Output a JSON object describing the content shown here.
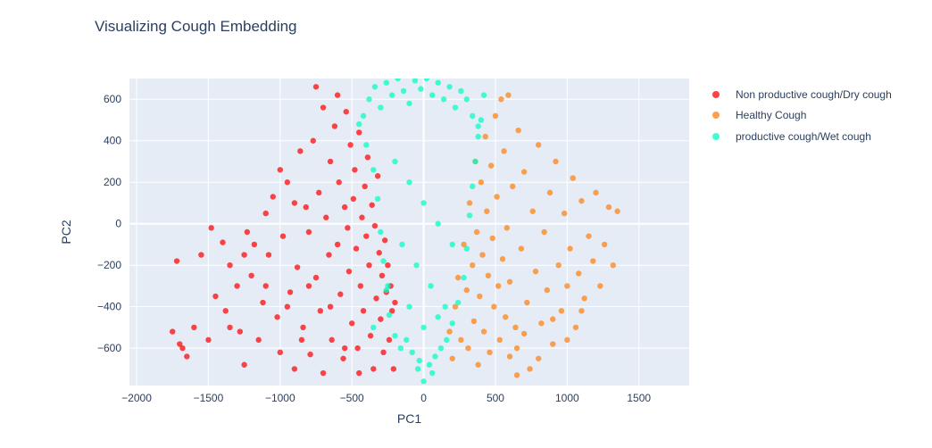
{
  "chart_data": {
    "type": "scatter",
    "title": "Visualizing Cough Embedding",
    "xlabel": "PC1",
    "ylabel": "PC2",
    "xlim": [
      -2050,
      1850
    ],
    "ylim": [
      -780,
      700
    ],
    "xticks": [
      -2000,
      -1500,
      -1000,
      -500,
      0,
      500,
      1000,
      1500
    ],
    "xtick_labels": [
      "−2000",
      "−1500",
      "−1000",
      "−500",
      "0",
      "500",
      "1000",
      "1500"
    ],
    "yticks": [
      -600,
      -400,
      -200,
      0,
      200,
      400,
      600
    ],
    "ytick_labels": [
      "−600",
      "−400",
      "−200",
      "0",
      "200",
      "400",
      "600"
    ],
    "grid": true,
    "legend_position": "right",
    "plot_background": "#e5ecf6",
    "series": [
      {
        "name": "Non productive cough/Dry cough",
        "color": "#ff0000",
        "points": [
          [
            -1750,
            -520
          ],
          [
            -1720,
            -180
          ],
          [
            -1700,
            -580
          ],
          [
            -1680,
            -600
          ],
          [
            -1650,
            -640
          ],
          [
            -1600,
            -500
          ],
          [
            -1550,
            -150
          ],
          [
            -1500,
            -560
          ],
          [
            -1480,
            -20
          ],
          [
            -1450,
            -350
          ],
          [
            -1400,
            -90
          ],
          [
            -1380,
            -420
          ],
          [
            -1350,
            -200
          ],
          [
            -1300,
            -300
          ],
          [
            -1280,
            -520
          ],
          [
            -1250,
            -680
          ],
          [
            -1230,
            -40
          ],
          [
            -1200,
            -250
          ],
          [
            -1180,
            -100
          ],
          [
            -1150,
            -560
          ],
          [
            -1120,
            -380
          ],
          [
            -1100,
            50
          ],
          [
            -1080,
            -150
          ],
          [
            -1050,
            130
          ],
          [
            -1020,
            -450
          ],
          [
            -1000,
            -620
          ],
          [
            -980,
            -60
          ],
          [
            -950,
            200
          ],
          [
            -930,
            -330
          ],
          [
            -900,
            -700
          ],
          [
            -880,
            -210
          ],
          [
            -860,
            350
          ],
          [
            -840,
            -500
          ],
          [
            -820,
            80
          ],
          [
            -800,
            -40
          ],
          [
            -790,
            -630
          ],
          [
            -770,
            400
          ],
          [
            -750,
            -260
          ],
          [
            -730,
            150
          ],
          [
            -720,
            -420
          ],
          [
            -700,
            -720
          ],
          [
            -680,
            30
          ],
          [
            -660,
            -150
          ],
          [
            -650,
            300
          ],
          [
            -640,
            -560
          ],
          [
            -620,
            470
          ],
          [
            -600,
            -100
          ],
          [
            -590,
            200
          ],
          [
            -580,
            -340
          ],
          [
            -560,
            -650
          ],
          [
            -550,
            80
          ],
          [
            -540,
            540
          ],
          [
            -530,
            -20
          ],
          [
            -520,
            -230
          ],
          [
            -510,
            380
          ],
          [
            -500,
            -480
          ],
          [
            -490,
            120
          ],
          [
            -480,
            260
          ],
          [
            -470,
            -120
          ],
          [
            -460,
            -600
          ],
          [
            -450,
            440
          ],
          [
            -440,
            -300
          ],
          [
            -430,
            30
          ],
          [
            -420,
            -420
          ],
          [
            -410,
            180
          ],
          [
            -400,
            -60
          ],
          [
            -390,
            320
          ],
          [
            -380,
            -200
          ],
          [
            -370,
            -540
          ],
          [
            -360,
            90
          ],
          [
            -350,
            -700
          ],
          [
            -340,
            -10
          ],
          [
            -330,
            -360
          ],
          [
            -320,
            230
          ],
          [
            -310,
            -140
          ],
          [
            -300,
            -460
          ],
          [
            -290,
            -250
          ],
          [
            -280,
            -620
          ],
          [
            -270,
            -80
          ],
          [
            -260,
            -330
          ],
          [
            -250,
            -200
          ],
          [
            -240,
            -560
          ],
          [
            -230,
            -300
          ],
          [
            -220,
            -420
          ],
          [
            -210,
            -700
          ],
          [
            -200,
            -380
          ],
          [
            -800,
            -300
          ],
          [
            -900,
            100
          ],
          [
            -1000,
            260
          ],
          [
            -700,
            560
          ],
          [
            -600,
            620
          ],
          [
            -750,
            660
          ],
          [
            -1100,
            -300
          ],
          [
            -950,
            -400
          ],
          [
            -650,
            -400
          ],
          [
            -550,
            -600
          ],
          [
            -450,
            -720
          ],
          [
            -1250,
            -150
          ],
          [
            -1350,
            -500
          ],
          [
            -850,
            -560
          ]
        ]
      },
      {
        "name": "Healthy Cough",
        "color": "#ff7f0e",
        "points": [
          [
            180,
            -520
          ],
          [
            200,
            -650
          ],
          [
            220,
            -400
          ],
          [
            240,
            -260
          ],
          [
            260,
            -560
          ],
          [
            280,
            -100
          ],
          [
            300,
            -320
          ],
          [
            310,
            -600
          ],
          [
            320,
            100
          ],
          [
            340,
            -200
          ],
          [
            350,
            -470
          ],
          [
            360,
            300
          ],
          [
            370,
            -40
          ],
          [
            380,
            -680
          ],
          [
            390,
            -350
          ],
          [
            400,
            200
          ],
          [
            410,
            -150
          ],
          [
            420,
            -520
          ],
          [
            430,
            420
          ],
          [
            440,
            60
          ],
          [
            450,
            -250
          ],
          [
            460,
            -620
          ],
          [
            470,
            280
          ],
          [
            480,
            -70
          ],
          [
            490,
            -400
          ],
          [
            500,
            520
          ],
          [
            510,
            130
          ],
          [
            520,
            -300
          ],
          [
            530,
            -560
          ],
          [
            540,
            600
          ],
          [
            550,
            -170
          ],
          [
            560,
            350
          ],
          [
            570,
            -450
          ],
          [
            580,
            -20
          ],
          [
            590,
            620
          ],
          [
            600,
            -280
          ],
          [
            620,
            180
          ],
          [
            640,
            -500
          ],
          [
            650,
            -600
          ],
          [
            660,
            450
          ],
          [
            680,
            -120
          ],
          [
            700,
            250
          ],
          [
            720,
            -380
          ],
          [
            740,
            -700
          ],
          [
            760,
            60
          ],
          [
            780,
            -230
          ],
          [
            800,
            380
          ],
          [
            820,
            -480
          ],
          [
            840,
            -40
          ],
          [
            860,
            -320
          ],
          [
            880,
            150
          ],
          [
            900,
            -580
          ],
          [
            920,
            300
          ],
          [
            940,
            -200
          ],
          [
            960,
            -420
          ],
          [
            980,
            50
          ],
          [
            1000,
            -300
          ],
          [
            1020,
            -120
          ],
          [
            1040,
            220
          ],
          [
            1060,
            -500
          ],
          [
            1080,
            -240
          ],
          [
            1100,
            110
          ],
          [
            1120,
            -360
          ],
          [
            1150,
            -60
          ],
          [
            1180,
            -180
          ],
          [
            1200,
            150
          ],
          [
            1230,
            -300
          ],
          [
            1260,
            -100
          ],
          [
            1290,
            80
          ],
          [
            1320,
            -200
          ],
          [
            1350,
            60
          ],
          [
            650,
            -730
          ],
          [
            1000,
            -560
          ],
          [
            800,
            -650
          ],
          [
            700,
            -530
          ],
          [
            600,
            -640
          ],
          [
            900,
            -460
          ],
          [
            1100,
            -420
          ]
        ]
      },
      {
        "name": "productive cough/Wet cough",
        "color": "#00fec0",
        "points": [
          [
            -420,
            520
          ],
          [
            -380,
            600
          ],
          [
            -340,
            660
          ],
          [
            -300,
            560
          ],
          [
            -260,
            680
          ],
          [
            -220,
            620
          ],
          [
            -180,
            700
          ],
          [
            -140,
            640
          ],
          [
            -100,
            580
          ],
          [
            -60,
            690
          ],
          [
            -20,
            650
          ],
          [
            20,
            700
          ],
          [
            60,
            620
          ],
          [
            100,
            680
          ],
          [
            140,
            600
          ],
          [
            180,
            660
          ],
          [
            220,
            560
          ],
          [
            260,
            640
          ],
          [
            300,
            600
          ],
          [
            340,
            520
          ],
          [
            380,
            470
          ],
          [
            -400,
            380
          ],
          [
            -350,
            260
          ],
          [
            -320,
            120
          ],
          [
            -300,
            -40
          ],
          [
            -280,
            -180
          ],
          [
            -260,
            -320
          ],
          [
            -240,
            -440
          ],
          [
            -200,
            -540
          ],
          [
            -160,
            -600
          ],
          [
            -120,
            -560
          ],
          [
            -80,
            -620
          ],
          [
            -40,
            -700
          ],
          [
            0,
            -760
          ],
          [
            40,
            -680
          ],
          [
            80,
            -640
          ],
          [
            120,
            -600
          ],
          [
            160,
            -560
          ],
          [
            200,
            -480
          ],
          [
            240,
            -380
          ],
          [
            280,
            -260
          ],
          [
            300,
            -120
          ],
          [
            320,
            40
          ],
          [
            340,
            180
          ],
          [
            360,
            300
          ],
          [
            380,
            420
          ],
          [
            400,
            500
          ],
          [
            -200,
            300
          ],
          [
            -100,
            200
          ],
          [
            0,
            100
          ],
          [
            100,
            0
          ],
          [
            200,
            -100
          ],
          [
            -150,
            -100
          ],
          [
            -50,
            -200
          ],
          [
            50,
            -300
          ],
          [
            150,
            -400
          ],
          [
            -250,
            -300
          ],
          [
            -100,
            -400
          ],
          [
            0,
            -500
          ],
          [
            100,
            -450
          ],
          [
            -350,
            -500
          ],
          [
            420,
            620
          ],
          [
            -450,
            480
          ],
          [
            -30,
            -660
          ],
          [
            60,
            -720
          ]
        ]
      }
    ]
  }
}
